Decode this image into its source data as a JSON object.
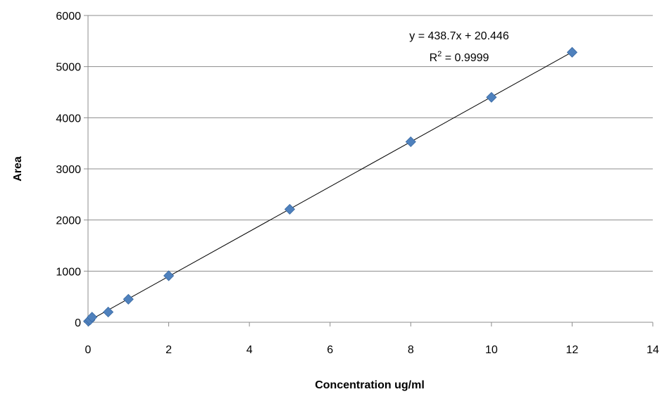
{
  "chart_data": {
    "type": "scatter",
    "xlabel": "Concentration ug/ml",
    "ylabel": "Area",
    "xlim": [
      0,
      14
    ],
    "ylim": [
      0,
      6000
    ],
    "x_ticks": [
      "0",
      "2",
      "4",
      "6",
      "8",
      "10",
      "12",
      "14"
    ],
    "y_ticks": [
      "0",
      "1000",
      "2000",
      "3000",
      "4000",
      "5000",
      "6000"
    ],
    "grid": "horizontal",
    "legend": "none",
    "series": [
      {
        "marker": "diamond",
        "color": "#4f81bd",
        "x": [
          0.01,
          0.05,
          0.1,
          0.5,
          1,
          2,
          5,
          8,
          10,
          12
        ],
        "y": [
          20,
          45,
          100,
          200,
          450,
          910,
          2210,
          3530,
          4400,
          5280
        ]
      }
    ],
    "trendline": {
      "type": "linear",
      "slope": 438.7,
      "intercept": 20.446,
      "x_range": [
        0,
        12
      ],
      "color": "#000000"
    },
    "annotations": {
      "equation": "y = 438.7x + 20.446",
      "r2_prefix": "R",
      "r2_sup": "2",
      "r2_suffix": " = 0.9999"
    }
  }
}
